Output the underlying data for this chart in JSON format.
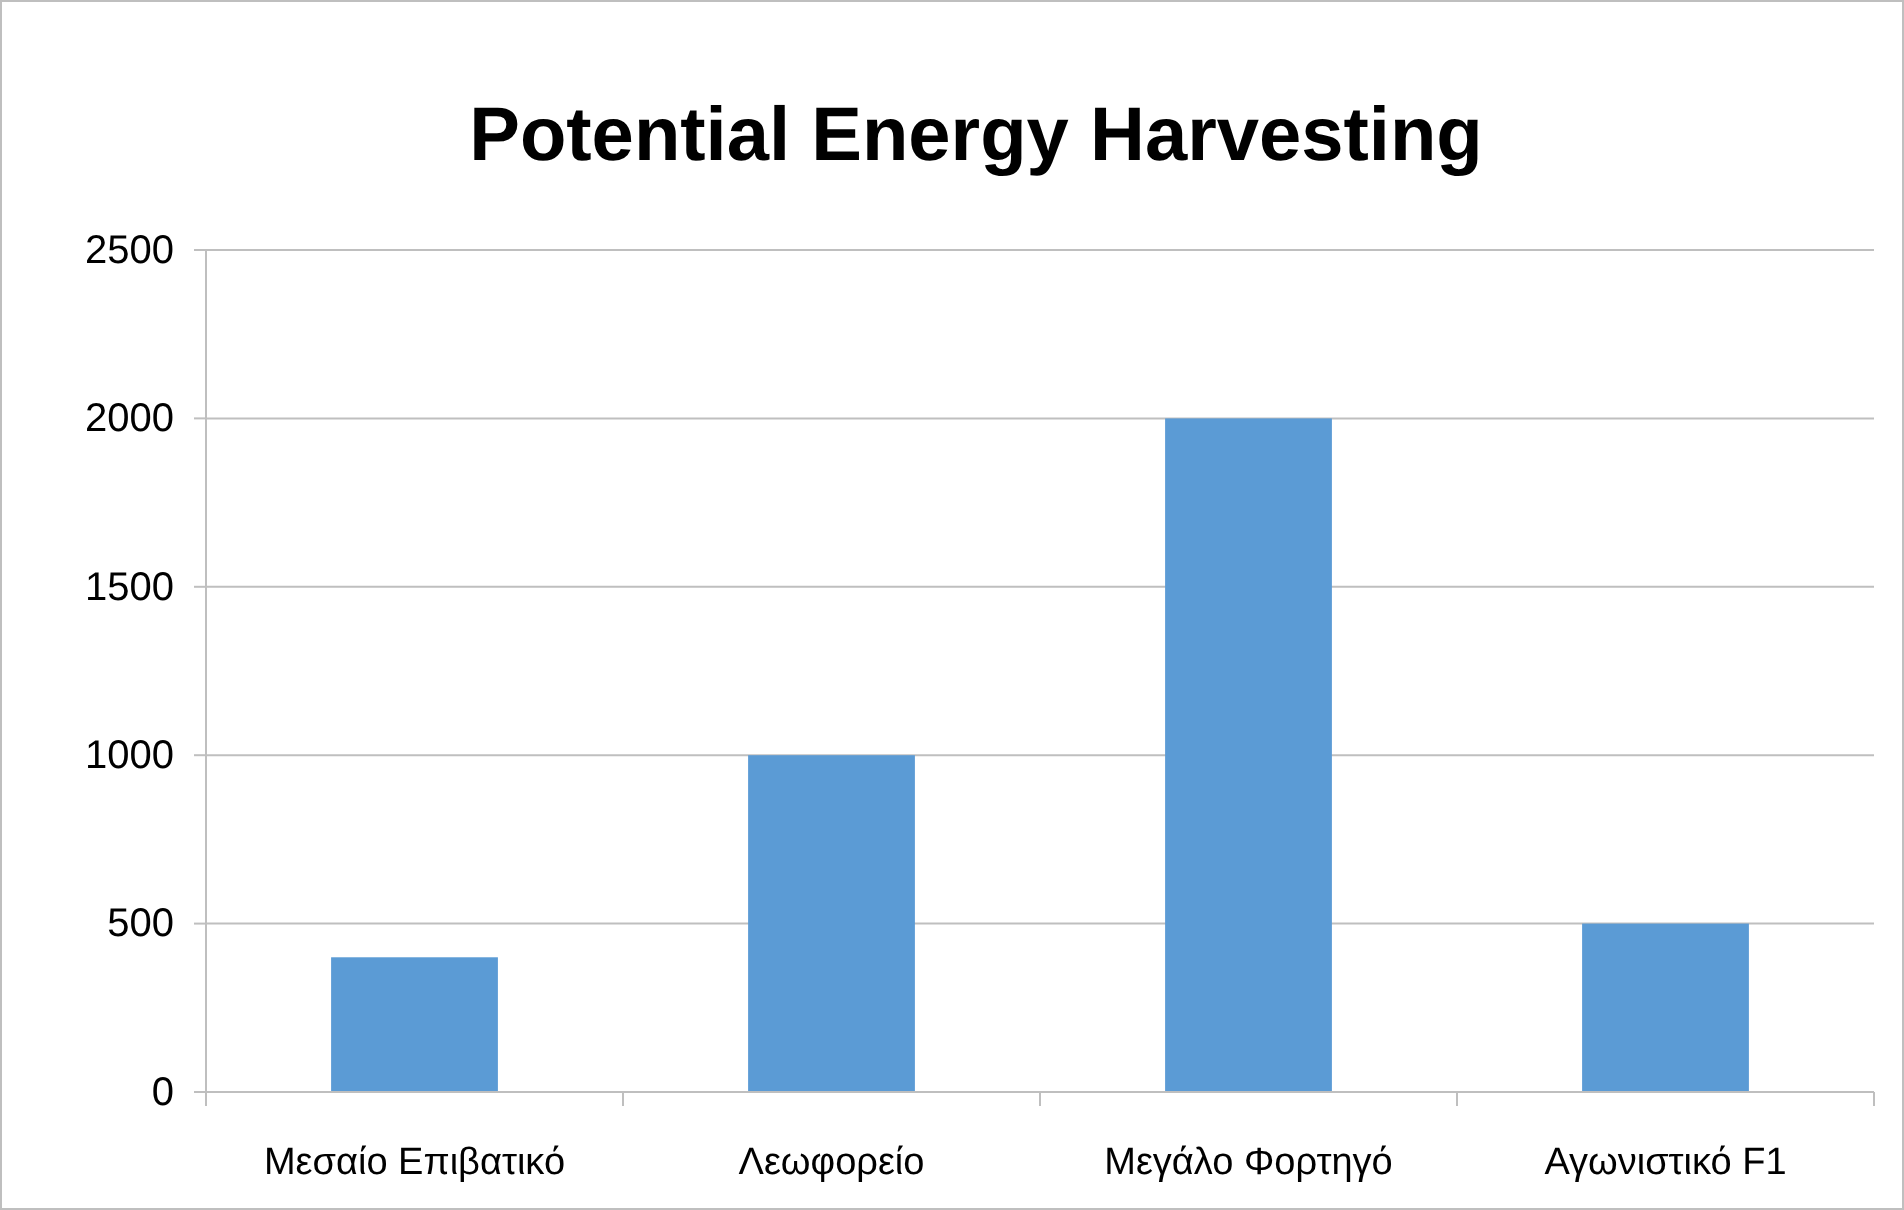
{
  "chart_data": {
    "type": "bar",
    "title": "Potential Energy Harvesting",
    "categories": [
      "Μεσαίο Επιβατικό",
      "Λεωφορείο",
      "Μεγάλο Φορτηγό",
      "Αγωνιστικό F1"
    ],
    "values": [
      400,
      1000,
      2000,
      500
    ],
    "color": "#5b9bd5",
    "ylim": [
      0,
      2500
    ],
    "yticks": [
      0,
      500,
      1000,
      1500,
      2000,
      2500
    ],
    "grid": "y"
  }
}
